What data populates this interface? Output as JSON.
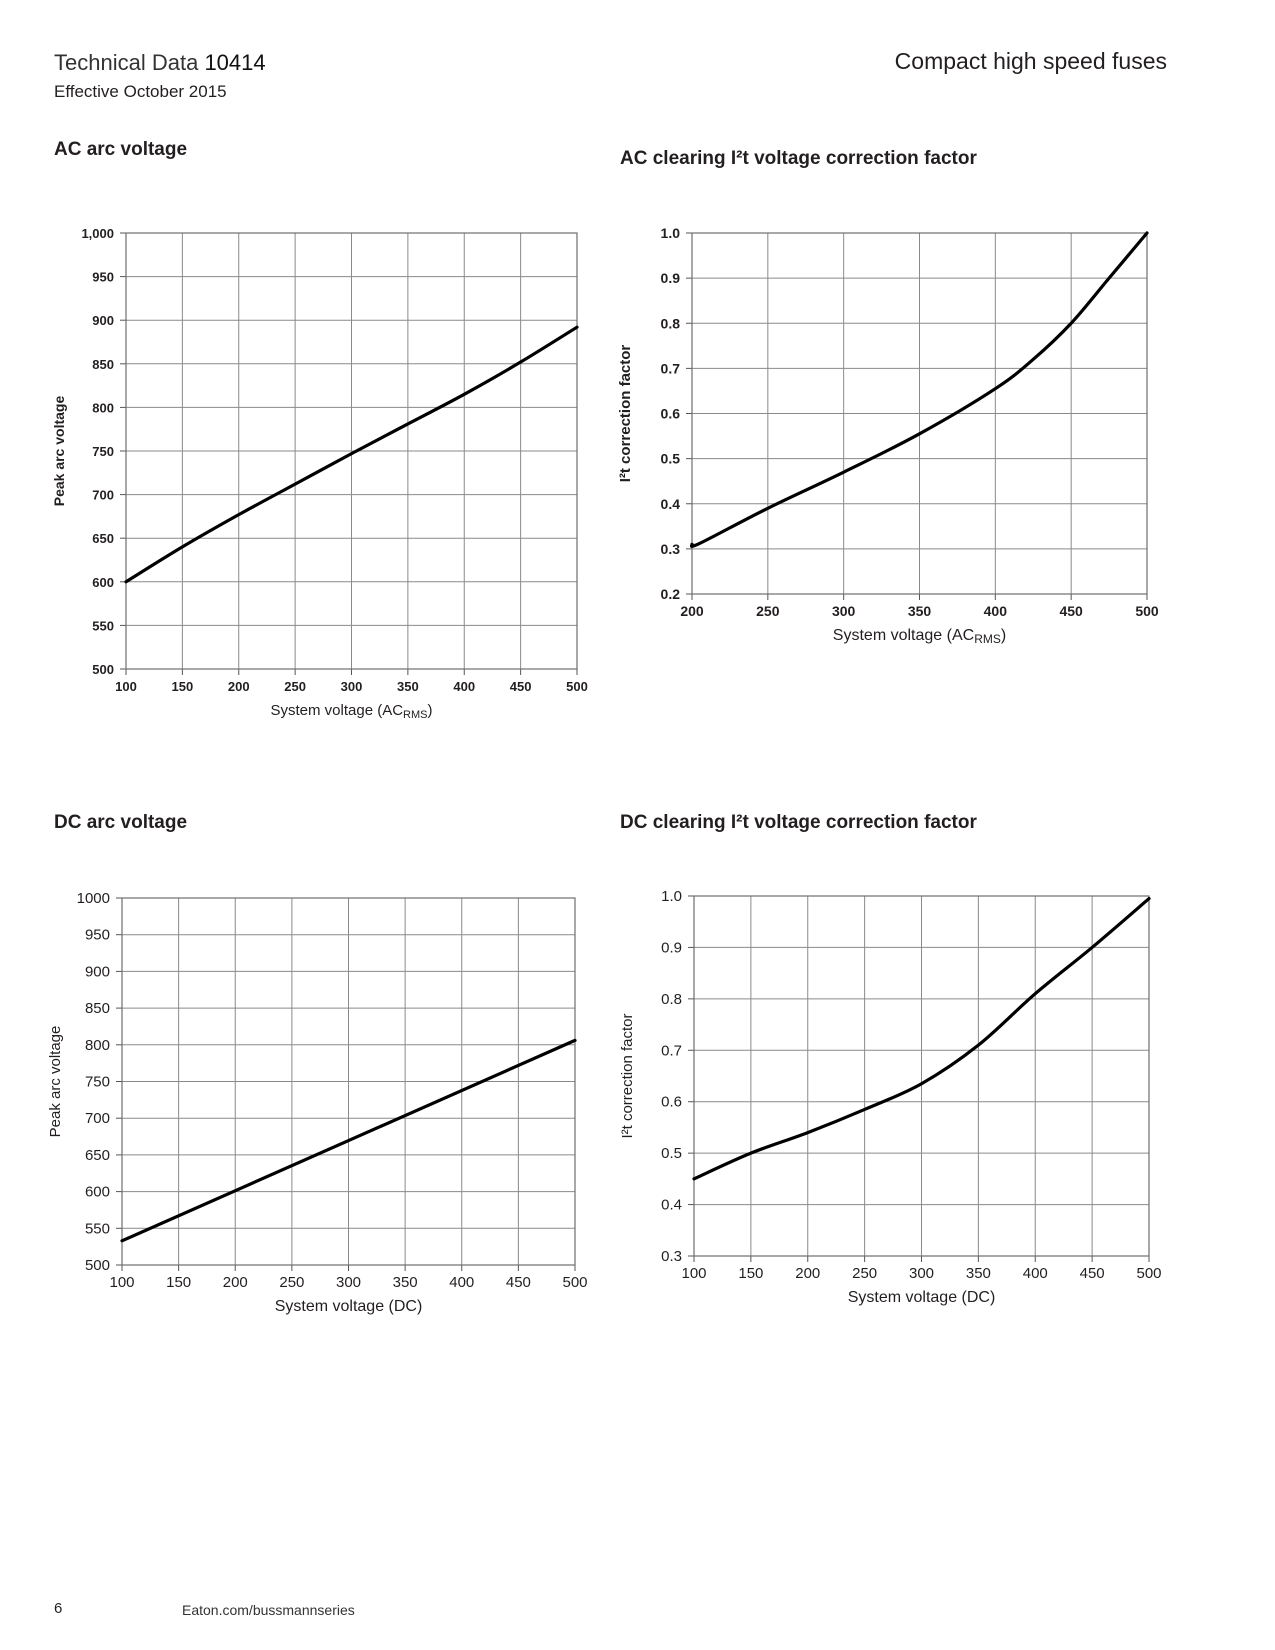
{
  "header": {
    "doc_title_light": "Technical Data",
    "doc_number": "10414",
    "effective": "Effective October 2015",
    "product": "Compact high speed fuses"
  },
  "footer": {
    "page_number": "6",
    "url": "Eaton.com/bussmannseries"
  },
  "chart_data": [
    {
      "type": "line",
      "title": "AC arc voltage",
      "xlabel": "System voltage (AC",
      "xlabel_sub": "RMS",
      "xlabel_close": ")",
      "ylabel": "Peak arc voltage",
      "xlim": [
        100,
        500
      ],
      "ylim": [
        500,
        1000
      ],
      "xticks": [
        100,
        150,
        200,
        250,
        300,
        350,
        400,
        450,
        500
      ],
      "yticks": [
        500,
        550,
        600,
        650,
        700,
        750,
        800,
        850,
        900,
        950,
        1000
      ],
      "ytick_labels": [
        "500",
        "550",
        "600",
        "650",
        "700",
        "750",
        "800",
        "850",
        "900",
        "950",
        "1,000"
      ],
      "grid": true,
      "series": [
        {
          "x": [
            100,
            150,
            200,
            250,
            300,
            350,
            400,
            450,
            500
          ],
          "y": [
            600,
            640,
            677,
            712,
            747,
            781,
            815,
            852,
            892
          ]
        }
      ]
    },
    {
      "type": "line",
      "title": "AC clearing I²t voltage correction factor",
      "xlabel": "System voltage (AC",
      "xlabel_sub": "RMS",
      "xlabel_close": ")",
      "ylabel": "I²t correction factor",
      "xlim": [
        200,
        500
      ],
      "ylim": [
        0.2,
        1.0
      ],
      "xticks": [
        200,
        250,
        300,
        350,
        400,
        450,
        500
      ],
      "yticks": [
        0.2,
        0.3,
        0.4,
        0.5,
        0.6,
        0.7,
        0.8,
        0.9,
        1.0
      ],
      "ytick_labels": [
        "0.2",
        "0.3",
        "0.4",
        "0.5",
        "0.6",
        "0.7",
        "0.8",
        "0.9",
        "1.0"
      ],
      "grid": true,
      "series": [
        {
          "x": [
            200,
            205,
            250,
            300,
            350,
            400,
            425,
            450,
            475,
            500
          ],
          "y": [
            0.31,
            0.312,
            0.39,
            0.47,
            0.555,
            0.655,
            0.72,
            0.8,
            0.9,
            1.0
          ]
        }
      ]
    },
    {
      "type": "line",
      "title": "DC arc voltage",
      "xlabel": "System voltage (DC)",
      "ylabel": "Peak arc voltage",
      "xlim": [
        100,
        500
      ],
      "ylim": [
        500,
        1000
      ],
      "xticks": [
        100,
        150,
        200,
        250,
        300,
        350,
        400,
        450,
        500
      ],
      "yticks": [
        500,
        550,
        600,
        650,
        700,
        750,
        800,
        850,
        900,
        950,
        1000
      ],
      "ytick_labels": [
        "500",
        "550",
        "600",
        "650",
        "700",
        "750",
        "800",
        "850",
        "900",
        "950",
        "1000"
      ],
      "grid": true,
      "series": [
        {
          "x": [
            100,
            500
          ],
          "y": [
            533,
            806
          ]
        }
      ]
    },
    {
      "type": "line",
      "title": "DC clearing I²t voltage correction factor",
      "xlabel": "System voltage (DC)",
      "ylabel": "I²t correction factor",
      "xlim": [
        100,
        500
      ],
      "ylim": [
        0.3,
        1.0
      ],
      "xticks": [
        100,
        150,
        200,
        250,
        300,
        350,
        400,
        450,
        500
      ],
      "yticks": [
        0.3,
        0.4,
        0.5,
        0.6,
        0.7,
        0.8,
        0.9,
        1.0
      ],
      "ytick_labels": [
        "0.3",
        "0.4",
        "0.5",
        "0.6",
        "0.7",
        "0.8",
        "0.9",
        "1.0"
      ],
      "grid": true,
      "series": [
        {
          "x": [
            100,
            150,
            200,
            250,
            300,
            350,
            400,
            450,
            500
          ],
          "y": [
            0.45,
            0.5,
            0.54,
            0.585,
            0.635,
            0.71,
            0.81,
            0.9,
            0.995
          ]
        }
      ]
    }
  ]
}
